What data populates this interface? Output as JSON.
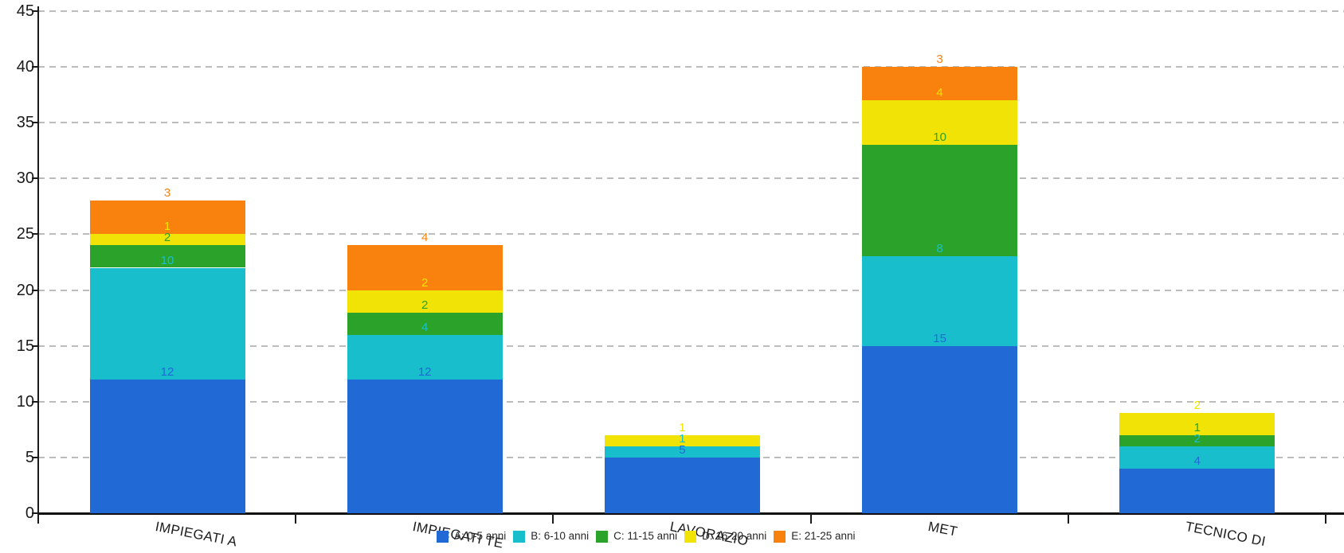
{
  "chart_data": {
    "type": "bar",
    "stacked": true,
    "categories": [
      "IMPIEGATI A",
      "IMPIEGATI TE",
      "LAVORAZIO",
      "MET",
      "TECNICO DI"
    ],
    "series": [
      {
        "name": "A: 0-5 anni",
        "color": "#2169D5",
        "values": [
          12,
          12,
          5,
          15,
          4
        ]
      },
      {
        "name": "B: 6-10 anni",
        "color": "#19BECD",
        "values": [
          10,
          4,
          1,
          8,
          2
        ]
      },
      {
        "name": "C: 11-15 anni",
        "color": "#2BA32B",
        "values": [
          2,
          2,
          0,
          10,
          1
        ]
      },
      {
        "name": "D: 16-20 anni",
        "color": "#F0E305",
        "values": [
          1,
          2,
          1,
          4,
          2
        ]
      },
      {
        "name": "E: 21-25 anni",
        "color": "#F9820E",
        "values": [
          3,
          4,
          0,
          3,
          0
        ]
      }
    ],
    "show_value_labels": true,
    "ylim": [
      0,
      45
    ],
    "ytick_step": 5,
    "yticks": [
      "0",
      "5",
      "10",
      "15",
      "20",
      "25",
      "30",
      "35",
      "40",
      "45"
    ],
    "grid": "horizontal-dashed",
    "legend_position": "bottom-center"
  },
  "colors": {
    "axis": "#1A1A1A",
    "gridline": "#BCBCBC",
    "tick_label": "#1A1A1A"
  }
}
